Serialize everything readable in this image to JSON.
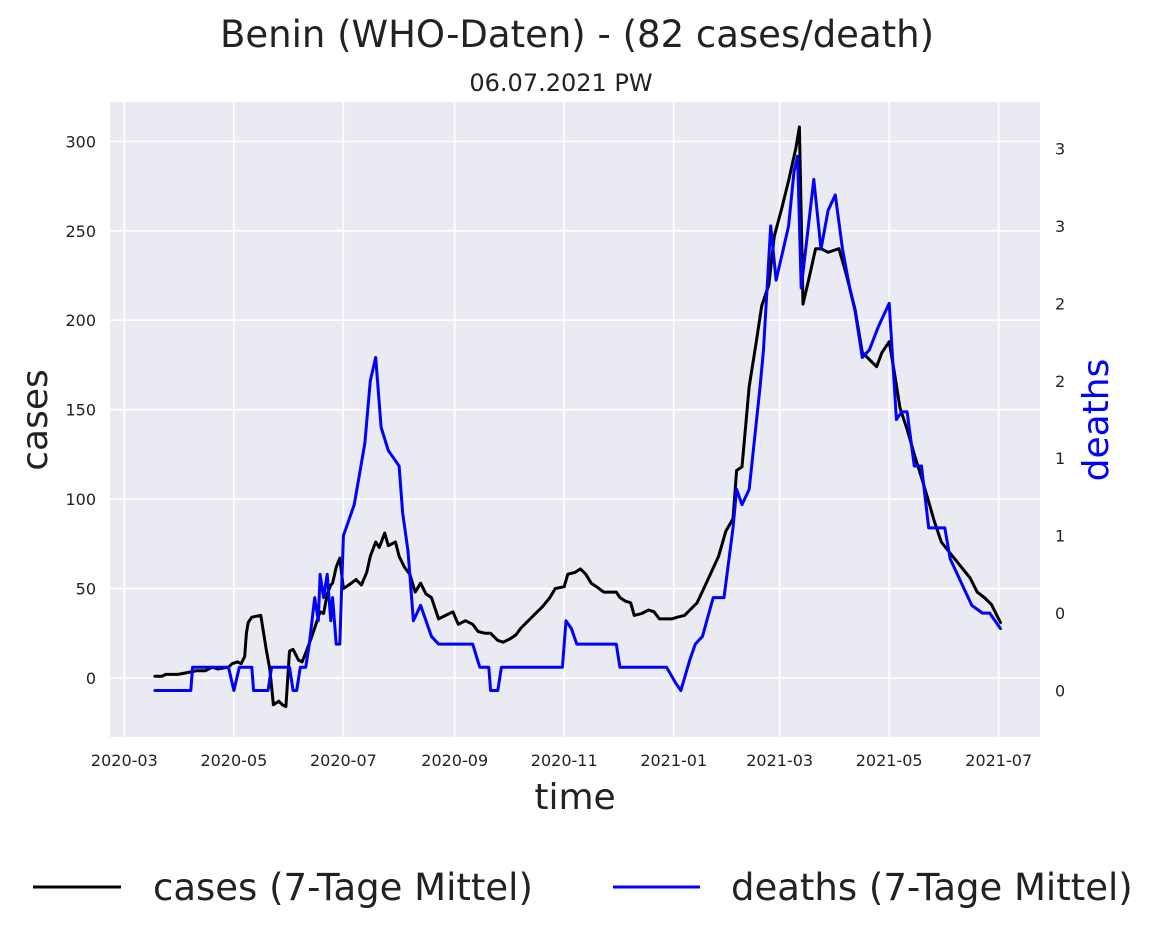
{
  "chart_data": {
    "type": "line",
    "title": "Benin (WHO-Daten) - (82 cases/death)",
    "subtitle": "06.07.2021 PW",
    "xlabel": "time",
    "ylabel": "cases",
    "y2label": "deaths",
    "grid": true,
    "legend_position": "bottom",
    "colors": {
      "background": "#eaeaf2",
      "grid": "#ffffff",
      "cases": "#000000",
      "deaths": "#0000ff"
    },
    "xlim": [
      "2020-02-22",
      "2021-07-24"
    ],
    "ylim": [
      -33,
      322
    ],
    "y2lim": [
      -0.3,
      3.8
    ],
    "x_ticks": [
      {
        "date": "2020-03-01",
        "label": "2020-03"
      },
      {
        "date": "2020-05-01",
        "label": "2020-05"
      },
      {
        "date": "2020-07-01",
        "label": "2020-07"
      },
      {
        "date": "2020-09-01",
        "label": "2020-09"
      },
      {
        "date": "2020-11-01",
        "label": "2020-11"
      },
      {
        "date": "2021-01-01",
        "label": "2021-01"
      },
      {
        "date": "2021-03-01",
        "label": "2021-03"
      },
      {
        "date": "2021-05-01",
        "label": "2021-05"
      },
      {
        "date": "2021-07-01",
        "label": "2021-07"
      }
    ],
    "y_ticks": [
      {
        "value": 0,
        "label": "0"
      },
      {
        "value": 50,
        "label": "50"
      },
      {
        "value": 100,
        "label": "100"
      },
      {
        "value": 150,
        "label": "150"
      },
      {
        "value": 200,
        "label": "200"
      },
      {
        "value": 250,
        "label": "250"
      },
      {
        "value": 300,
        "label": "300"
      }
    ],
    "y2_ticks": [
      {
        "value": 0.0,
        "label": "0"
      },
      {
        "value": 0.5,
        "label": "0"
      },
      {
        "value": 1.0,
        "label": "1"
      },
      {
        "value": 1.5,
        "label": "1"
      },
      {
        "value": 2.0,
        "label": "2"
      },
      {
        "value": 2.5,
        "label": "2"
      },
      {
        "value": 3.0,
        "label": "3"
      },
      {
        "value": 3.5,
        "label": "3"
      }
    ],
    "series": [
      {
        "name": "cases (7-Tage Mittel)",
        "axis": "left",
        "points": [
          [
            "2020-03-18",
            1
          ],
          [
            "2020-03-22",
            1
          ],
          [
            "2020-03-24",
            2
          ],
          [
            "2020-03-31",
            2
          ],
          [
            "2020-04-05",
            3
          ],
          [
            "2020-04-10",
            4
          ],
          [
            "2020-04-15",
            4
          ],
          [
            "2020-04-19",
            6
          ],
          [
            "2020-04-22",
            5
          ],
          [
            "2020-04-28",
            6
          ],
          [
            "2020-04-30",
            8
          ],
          [
            "2020-05-03",
            9
          ],
          [
            "2020-05-05",
            8
          ],
          [
            "2020-05-07",
            12
          ],
          [
            "2020-05-08",
            25
          ],
          [
            "2020-05-09",
            31
          ],
          [
            "2020-05-11",
            34
          ],
          [
            "2020-05-16",
            35
          ],
          [
            "2020-05-19",
            16
          ],
          [
            "2020-05-21",
            5
          ],
          [
            "2020-05-23",
            -15
          ],
          [
            "2020-05-26",
            -13
          ],
          [
            "2020-05-28",
            -15
          ],
          [
            "2020-05-30",
            -16
          ],
          [
            "2020-06-01",
            15
          ],
          [
            "2020-06-03",
            16
          ],
          [
            "2020-06-06",
            10
          ],
          [
            "2020-06-08",
            9
          ],
          [
            "2020-06-10",
            14
          ],
          [
            "2020-06-13",
            22
          ],
          [
            "2020-06-16",
            31
          ],
          [
            "2020-06-18",
            37
          ],
          [
            "2020-06-20",
            36
          ],
          [
            "2020-06-22",
            47
          ],
          [
            "2020-06-24",
            52
          ],
          [
            "2020-06-25",
            53
          ],
          [
            "2020-06-27",
            62
          ],
          [
            "2020-06-29",
            67
          ],
          [
            "2020-07-01",
            50
          ],
          [
            "2020-07-04",
            52
          ],
          [
            "2020-07-08",
            55
          ],
          [
            "2020-07-11",
            52
          ],
          [
            "2020-07-14",
            59
          ],
          [
            "2020-07-16",
            68
          ],
          [
            "2020-07-19",
            76
          ],
          [
            "2020-07-21",
            73
          ],
          [
            "2020-07-24",
            81
          ],
          [
            "2020-07-26",
            74
          ],
          [
            "2020-07-30",
            76
          ],
          [
            "2020-08-01",
            68
          ],
          [
            "2020-08-04",
            62
          ],
          [
            "2020-08-07",
            58
          ],
          [
            "2020-08-10",
            48
          ],
          [
            "2020-08-13",
            53
          ],
          [
            "2020-08-16",
            47
          ],
          [
            "2020-08-19",
            45
          ],
          [
            "2020-08-23",
            33
          ],
          [
            "2020-08-27",
            35
          ],
          [
            "2020-08-31",
            37
          ],
          [
            "2020-09-03",
            30
          ],
          [
            "2020-09-07",
            32
          ],
          [
            "2020-09-11",
            30
          ],
          [
            "2020-09-14",
            26
          ],
          [
            "2020-09-18",
            25
          ],
          [
            "2020-09-21",
            25
          ],
          [
            "2020-09-25",
            21
          ],
          [
            "2020-09-28",
            20
          ],
          [
            "2020-10-02",
            22
          ],
          [
            "2020-10-05",
            24
          ],
          [
            "2020-10-08",
            28
          ],
          [
            "2020-10-13",
            33
          ],
          [
            "2020-10-17",
            37
          ],
          [
            "2020-10-20",
            40
          ],
          [
            "2020-10-24",
            45
          ],
          [
            "2020-10-27",
            50
          ],
          [
            "2020-11-01",
            51
          ],
          [
            "2020-11-03",
            58
          ],
          [
            "2020-11-07",
            59
          ],
          [
            "2020-11-10",
            61
          ],
          [
            "2020-11-13",
            58
          ],
          [
            "2020-11-16",
            53
          ],
          [
            "2020-11-19",
            51
          ],
          [
            "2020-11-23",
            48
          ],
          [
            "2020-11-27",
            48
          ],
          [
            "2020-11-30",
            48
          ],
          [
            "2020-12-02",
            45
          ],
          [
            "2020-12-05",
            43
          ],
          [
            "2020-12-08",
            42
          ],
          [
            "2020-12-10",
            35
          ],
          [
            "2020-12-14",
            36
          ],
          [
            "2020-12-18",
            38
          ],
          [
            "2020-12-21",
            37
          ],
          [
            "2020-12-24",
            33
          ],
          [
            "2020-12-27",
            33
          ],
          [
            "2020-12-31",
            33
          ],
          [
            "2021-01-03",
            34
          ],
          [
            "2021-01-07",
            35
          ],
          [
            "2021-01-10",
            38
          ],
          [
            "2021-01-14",
            42
          ],
          [
            "2021-01-20",
            55
          ],
          [
            "2021-01-26",
            68
          ],
          [
            "2021-01-30",
            82
          ],
          [
            "2021-02-03",
            89
          ],
          [
            "2021-02-05",
            116
          ],
          [
            "2021-02-08",
            118
          ],
          [
            "2021-02-12",
            163
          ],
          [
            "2021-02-16",
            188
          ],
          [
            "2021-02-19",
            208
          ],
          [
            "2021-02-23",
            220
          ],
          [
            "2021-02-26",
            247
          ],
          [
            "2021-03-02",
            262
          ],
          [
            "2021-03-06",
            278
          ],
          [
            "2021-03-10",
            296
          ],
          [
            "2021-03-12",
            308
          ],
          [
            "2021-03-14",
            209
          ],
          [
            "2021-03-17",
            222
          ],
          [
            "2021-03-21",
            240
          ],
          [
            "2021-03-24",
            240
          ],
          [
            "2021-03-28",
            238
          ],
          [
            "2021-03-31",
            239
          ],
          [
            "2021-04-03",
            240
          ],
          [
            "2021-04-07",
            226
          ],
          [
            "2021-04-12",
            206
          ],
          [
            "2021-04-16",
            182
          ],
          [
            "2021-04-20",
            178
          ],
          [
            "2021-04-24",
            174
          ],
          [
            "2021-04-27",
            182
          ],
          [
            "2021-05-01",
            188
          ],
          [
            "2021-05-04",
            170
          ],
          [
            "2021-05-07",
            151
          ],
          [
            "2021-05-11",
            139
          ],
          [
            "2021-05-15",
            125
          ],
          [
            "2021-05-19",
            112
          ],
          [
            "2021-05-22",
            102
          ],
          [
            "2021-05-26",
            88
          ],
          [
            "2021-05-30",
            76
          ],
          [
            "2021-06-03",
            71
          ],
          [
            "2021-06-07",
            66
          ],
          [
            "2021-06-11",
            61
          ],
          [
            "2021-06-15",
            56
          ],
          [
            "2021-06-19",
            48
          ],
          [
            "2021-06-23",
            45
          ],
          [
            "2021-06-27",
            41
          ],
          [
            "2021-06-30",
            35
          ],
          [
            "2021-07-02",
            31
          ]
        ]
      },
      {
        "name": "deaths (7-Tage Mittel)",
        "axis": "right",
        "points": [
          [
            "2020-03-18",
            0.0
          ],
          [
            "2020-04-07",
            0.0
          ],
          [
            "2020-04-08",
            0.15
          ],
          [
            "2020-04-28",
            0.15
          ],
          [
            "2020-05-01",
            0.0
          ],
          [
            "2020-05-04",
            0.15
          ],
          [
            "2020-05-11",
            0.15
          ],
          [
            "2020-05-12",
            0.0
          ],
          [
            "2020-05-20",
            0.0
          ],
          [
            "2020-05-22",
            0.15
          ],
          [
            "2020-05-30",
            0.15
          ],
          [
            "2020-06-01",
            0.15
          ],
          [
            "2020-06-03",
            0.0
          ],
          [
            "2020-06-05",
            0.0
          ],
          [
            "2020-06-07",
            0.15
          ],
          [
            "2020-06-10",
            0.15
          ],
          [
            "2020-06-12",
            0.3
          ],
          [
            "2020-06-15",
            0.6
          ],
          [
            "2020-06-17",
            0.45
          ],
          [
            "2020-06-18",
            0.75
          ],
          [
            "2020-06-20",
            0.6
          ],
          [
            "2020-06-22",
            0.75
          ],
          [
            "2020-06-24",
            0.45
          ],
          [
            "2020-06-25",
            0.6
          ],
          [
            "2020-06-27",
            0.3
          ],
          [
            "2020-06-29",
            0.3
          ],
          [
            "2020-07-01",
            1.0
          ],
          [
            "2020-07-04",
            1.1
          ],
          [
            "2020-07-07",
            1.2
          ],
          [
            "2020-07-10",
            1.4
          ],
          [
            "2020-07-13",
            1.6
          ],
          [
            "2020-07-16",
            2.0
          ],
          [
            "2020-07-19",
            2.15
          ],
          [
            "2020-07-22",
            1.7
          ],
          [
            "2020-07-26",
            1.55
          ],
          [
            "2020-07-29",
            1.5
          ],
          [
            "2020-08-01",
            1.45
          ],
          [
            "2020-08-03",
            1.15
          ],
          [
            "2020-08-06",
            0.9
          ],
          [
            "2020-08-09",
            0.45
          ],
          [
            "2020-08-13",
            0.55
          ],
          [
            "2020-08-16",
            0.45
          ],
          [
            "2020-08-19",
            0.35
          ],
          [
            "2020-08-23",
            0.3
          ],
          [
            "2020-08-31",
            0.3
          ],
          [
            "2020-09-08",
            0.3
          ],
          [
            "2020-09-11",
            0.3
          ],
          [
            "2020-09-15",
            0.15
          ],
          [
            "2020-09-20",
            0.15
          ],
          [
            "2020-09-21",
            0.0
          ],
          [
            "2020-09-25",
            0.0
          ],
          [
            "2020-09-27",
            0.15
          ],
          [
            "2020-10-15",
            0.15
          ],
          [
            "2020-10-31",
            0.15
          ],
          [
            "2020-11-02",
            0.45
          ],
          [
            "2020-11-05",
            0.4
          ],
          [
            "2020-11-08",
            0.3
          ],
          [
            "2020-11-30",
            0.3
          ],
          [
            "2020-12-02",
            0.15
          ],
          [
            "2020-12-20",
            0.15
          ],
          [
            "2020-12-28",
            0.15
          ],
          [
            "2021-01-02",
            0.05
          ],
          [
            "2021-01-05",
            0.0
          ],
          [
            "2021-01-10",
            0.2
          ],
          [
            "2021-01-13",
            0.3
          ],
          [
            "2021-01-17",
            0.35
          ],
          [
            "2021-01-23",
            0.6
          ],
          [
            "2021-01-29",
            0.6
          ],
          [
            "2021-02-03",
            1.05
          ],
          [
            "2021-02-05",
            1.3
          ],
          [
            "2021-02-08",
            1.2
          ],
          [
            "2021-02-12",
            1.3
          ],
          [
            "2021-02-18",
            1.95
          ],
          [
            "2021-02-20",
            2.2
          ],
          [
            "2021-02-24",
            3.0
          ],
          [
            "2021-02-27",
            2.65
          ],
          [
            "2021-03-03",
            2.85
          ],
          [
            "2021-03-06",
            3.0
          ],
          [
            "2021-03-09",
            3.35
          ],
          [
            "2021-03-11",
            3.45
          ],
          [
            "2021-03-13",
            2.6
          ],
          [
            "2021-03-17",
            3.0
          ],
          [
            "2021-03-20",
            3.3
          ],
          [
            "2021-03-24",
            2.85
          ],
          [
            "2021-03-28",
            3.1
          ],
          [
            "2021-04-01",
            3.2
          ],
          [
            "2021-04-05",
            2.85
          ],
          [
            "2021-04-09",
            2.6
          ],
          [
            "2021-04-12",
            2.45
          ],
          [
            "2021-04-16",
            2.15
          ],
          [
            "2021-04-20",
            2.2
          ],
          [
            "2021-04-25",
            2.35
          ],
          [
            "2021-05-01",
            2.5
          ],
          [
            "2021-05-05",
            1.75
          ],
          [
            "2021-05-08",
            1.8
          ],
          [
            "2021-05-11",
            1.8
          ],
          [
            "2021-05-15",
            1.45
          ],
          [
            "2021-05-19",
            1.45
          ],
          [
            "2021-05-23",
            1.05
          ],
          [
            "2021-05-27",
            1.05
          ],
          [
            "2021-06-01",
            1.05
          ],
          [
            "2021-06-04",
            0.85
          ],
          [
            "2021-06-08",
            0.75
          ],
          [
            "2021-06-12",
            0.65
          ],
          [
            "2021-06-16",
            0.55
          ],
          [
            "2021-06-22",
            0.5
          ],
          [
            "2021-06-26",
            0.5
          ],
          [
            "2021-07-02",
            0.4
          ]
        ]
      }
    ]
  }
}
